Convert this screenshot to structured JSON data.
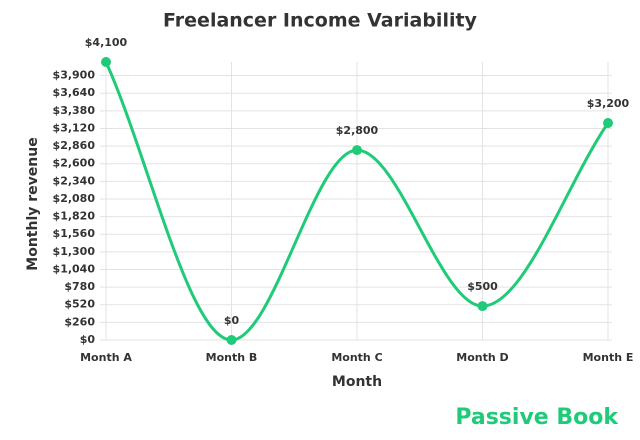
{
  "chart_data": {
    "type": "line",
    "title": "Freelancer Income Variability",
    "x_label": "Month",
    "y_label": "Monthly revenue",
    "categories": [
      "Month A",
      "Month B",
      "Month C",
      "Month D",
      "Month E"
    ],
    "values": [
      4100,
      0,
      2800,
      500,
      3200
    ],
    "value_labels": [
      "$4,100",
      "$0",
      "$2,800",
      "$500",
      "$3,200"
    ],
    "color": "#1fcb78",
    "ylim": [
      0,
      4100
    ],
    "yticks": [
      {
        "value": 0,
        "label": "$0"
      },
      {
        "value": 260,
        "label": "$260"
      },
      {
        "value": 520,
        "label": "$520"
      },
      {
        "value": 780,
        "label": "$780"
      },
      {
        "value": 1040,
        "label": "$1,040"
      },
      {
        "value": 1300,
        "label": "$1,300"
      },
      {
        "value": 1560,
        "label": "$1,560"
      },
      {
        "value": 1820,
        "label": "$1,820"
      },
      {
        "value": 2080,
        "label": "$2,080"
      },
      {
        "value": 2340,
        "label": "$2,340"
      },
      {
        "value": 2600,
        "label": "$2,600"
      },
      {
        "value": 2860,
        "label": "$2,860"
      },
      {
        "value": 3120,
        "label": "$3,120"
      },
      {
        "value": 3380,
        "label": "$3,380"
      },
      {
        "value": 3640,
        "label": "$3,640"
      },
      {
        "value": 3900,
        "label": "$3,900"
      }
    ],
    "grid": true,
    "watermark": "Passive Book"
  }
}
